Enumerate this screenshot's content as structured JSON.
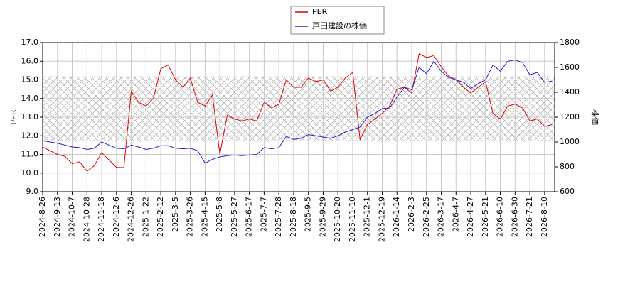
{
  "chart_data": {
    "type": "line",
    "categories": [
      "2024-8-26",
      null,
      "2024-9-13",
      null,
      "2024-10-7",
      null,
      "2024-10-28",
      null,
      "2024-11-18",
      null,
      "2024-12-6",
      null,
      "2024-12-26",
      null,
      "2025-1-22",
      null,
      "2025-2-12",
      null,
      "2025-3-5",
      null,
      "2025-3-26",
      null,
      "2025-4-15",
      null,
      "2025-5-8",
      null,
      "2025-5-27",
      null,
      "2025-6-17",
      null,
      "2025-7-7",
      null,
      "2025-7-28",
      null,
      "2025-8-18",
      null,
      "2025-9-5",
      null,
      "2025-9-29",
      null,
      "2025-10-20",
      null,
      "2025-11-10",
      null,
      "2025-12-1",
      null,
      "2025-12-19",
      null,
      "2026-1-14",
      null,
      "2026-2-3",
      null,
      "2026-2-25",
      null,
      "2026-3-17",
      null,
      "2026-4-7",
      null,
      "2026-4-27",
      null,
      "2026-5-21",
      null,
      "2026-6-10",
      null,
      "2026-6-30",
      null,
      "2026-7-21",
      null,
      "2026-8-10",
      null
    ],
    "series": [
      {
        "name": "PER",
        "color": "#dd0000",
        "axis": "y",
        "values": [
          11.4,
          11.2,
          11.0,
          10.9,
          10.5,
          10.6,
          10.1,
          10.4,
          11.1,
          10.7,
          10.3,
          10.3,
          14.4,
          13.8,
          13.6,
          14.0,
          15.6,
          15.8,
          15.0,
          14.6,
          15.1,
          13.8,
          13.6,
          14.2,
          11.0,
          13.1,
          12.9,
          12.8,
          12.9,
          12.8,
          13.8,
          13.5,
          13.7,
          15.0,
          14.6,
          14.6,
          15.1,
          14.9,
          15.0,
          14.4,
          14.6,
          15.1,
          15.4,
          11.8,
          12.6,
          12.9,
          13.2,
          13.6,
          14.5,
          14.6,
          14.3,
          16.4,
          16.2,
          16.3,
          15.7,
          15.2,
          15.0,
          14.6,
          14.3,
          14.6,
          14.9,
          13.2,
          12.9,
          13.6,
          13.7,
          13.5,
          12.8,
          12.9,
          12.5,
          12.6
        ]
      },
      {
        "name": "戸田建設の株価",
        "color": "#2222cc",
        "axis": "y2",
        "values": [
          1010,
          1000,
          990,
          975,
          960,
          955,
          940,
          950,
          1000,
          975,
          950,
          945,
          975,
          960,
          940,
          950,
          970,
          970,
          950,
          945,
          950,
          930,
          830,
          860,
          880,
          890,
          895,
          890,
          895,
          900,
          955,
          945,
          955,
          1045,
          1020,
          1030,
          1060,
          1050,
          1040,
          1030,
          1050,
          1080,
          1100,
          1120,
          1200,
          1230,
          1270,
          1275,
          1360,
          1440,
          1420,
          1600,
          1550,
          1650,
          1570,
          1520,
          1500,
          1480,
          1430,
          1470,
          1500,
          1620,
          1570,
          1650,
          1660,
          1640,
          1540,
          1560,
          1480,
          1490
        ]
      }
    ],
    "band": [
      11.7,
      15.2
    ],
    "ylabel": "PER",
    "y2label": "株価",
    "ylim": [
      9,
      17
    ],
    "yticks": [
      {
        "value": 9,
        "label": "9.0"
      },
      {
        "value": 10,
        "label": "10.0"
      },
      {
        "value": 11,
        "label": "11.0"
      },
      {
        "value": 12,
        "label": "12.0"
      },
      {
        "value": 13,
        "label": "13.0"
      },
      {
        "value": 14,
        "label": "14.0"
      },
      {
        "value": 15,
        "label": "15.0"
      },
      {
        "value": 16,
        "label": "16.0"
      },
      {
        "value": 17,
        "label": "17.0"
      }
    ],
    "y2lim": [
      600,
      1800
    ],
    "y2ticks": [
      600,
      800,
      1000,
      1200,
      1400,
      1600,
      1800
    ],
    "grid": true,
    "legend": "top"
  }
}
